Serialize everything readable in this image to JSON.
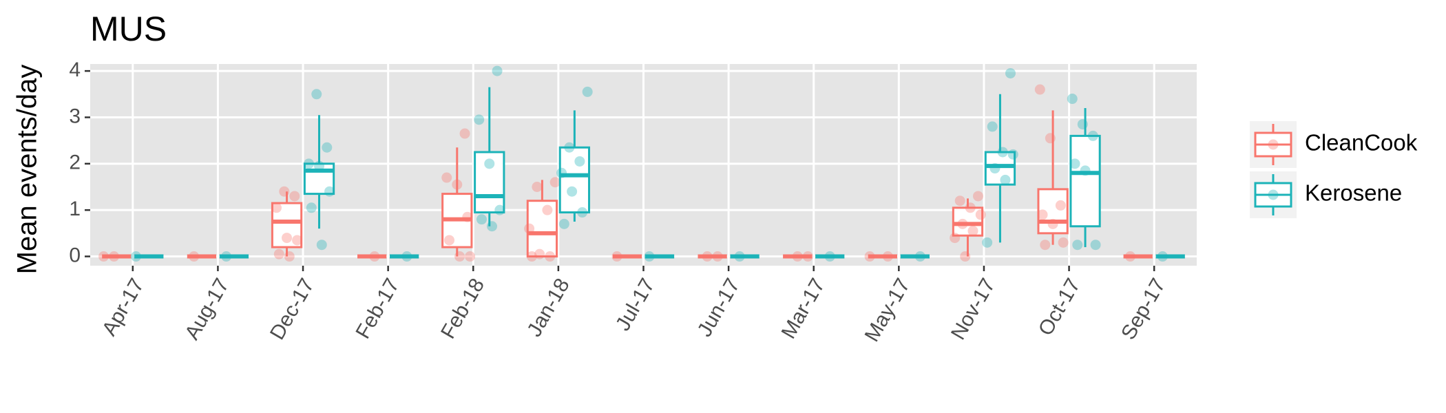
{
  "chart_data": {
    "type": "boxplot",
    "title": "MUS",
    "y_label": "Mean events/day",
    "categories": [
      "Apr-17",
      "Aug-17",
      "Dec-17",
      "Feb-17",
      "Feb-18",
      "Jan-18",
      "Jul-17",
      "Jun-17",
      "Mar-17",
      "May-17",
      "Nov-17",
      "Oct-17",
      "Sep-17"
    ],
    "ylim": [
      -0.2,
      4.15
    ],
    "yticks": [
      0,
      1,
      2,
      3,
      4
    ],
    "grid": true,
    "legend": "right",
    "series": [
      {
        "name": "CleanCook",
        "color": "#F8766D",
        "boxes": [
          {
            "min": 0,
            "q1": 0,
            "median": 0,
            "q3": 0,
            "max": 0
          },
          {
            "min": 0,
            "q1": 0,
            "median": 0,
            "q3": 0,
            "max": 0
          },
          {
            "min": 0,
            "q1": 0.2,
            "median": 0.75,
            "q3": 1.15,
            "max": 1.4
          },
          {
            "min": 0,
            "q1": 0,
            "median": 0,
            "q3": 0,
            "max": 0
          },
          {
            "min": 0,
            "q1": 0.2,
            "median": 0.8,
            "q3": 1.35,
            "max": 2.35
          },
          {
            "min": 0,
            "q1": 0,
            "median": 0.5,
            "q3": 1.2,
            "max": 1.65
          },
          {
            "min": 0,
            "q1": 0,
            "median": 0,
            "q3": 0,
            "max": 0
          },
          {
            "min": 0,
            "q1": 0,
            "median": 0,
            "q3": 0,
            "max": 0
          },
          {
            "min": 0,
            "q1": 0,
            "median": 0,
            "q3": 0,
            "max": 0
          },
          {
            "min": 0,
            "q1": 0,
            "median": 0,
            "q3": 0,
            "max": 0
          },
          {
            "min": 0,
            "q1": 0.45,
            "median": 0.7,
            "q3": 1.05,
            "max": 1.25
          },
          {
            "min": 0.25,
            "q1": 0.5,
            "median": 0.75,
            "q3": 1.45,
            "max": 3.15
          },
          {
            "min": 0,
            "q1": 0,
            "median": 0,
            "q3": 0,
            "max": 0
          }
        ],
        "points": [
          [
            0,
            0
          ],
          [
            0
          ],
          [
            1.4,
            1.3,
            1.05,
            0.4,
            0.35,
            0.05,
            0
          ],
          [
            0
          ],
          [
            2.65,
            1.7,
            1.55,
            0.85,
            0.35,
            0,
            0
          ],
          [
            1.6,
            1.5,
            1.0,
            0.6,
            0.05,
            0,
            0
          ],
          [
            0
          ],
          [
            0,
            0
          ],
          [
            0,
            0
          ],
          [
            0,
            0
          ],
          [
            1.3,
            1.2,
            1.05,
            0.9,
            0.7,
            0.55,
            0.4,
            0
          ],
          [
            3.6,
            2.55,
            1.1,
            0.9,
            0.7,
            0.3,
            0.25
          ],
          [
            0
          ]
        ]
      },
      {
        "name": "Kerosene",
        "color": "#1CB3B8",
        "boxes": [
          {
            "min": 0,
            "q1": 0,
            "median": 0,
            "q3": 0,
            "max": 0
          },
          {
            "min": 0,
            "q1": 0,
            "median": 0,
            "q3": 0,
            "max": 0
          },
          {
            "min": 0.6,
            "q1": 1.35,
            "median": 1.85,
            "q3": 2.0,
            "max": 3.05
          },
          {
            "min": 0,
            "q1": 0,
            "median": 0,
            "q3": 0,
            "max": 0
          },
          {
            "min": 0.65,
            "q1": 0.95,
            "median": 1.3,
            "q3": 2.25,
            "max": 3.65
          },
          {
            "min": 0.75,
            "q1": 0.95,
            "median": 1.75,
            "q3": 2.35,
            "max": 3.15
          },
          {
            "min": 0,
            "q1": 0,
            "median": 0,
            "q3": 0,
            "max": 0
          },
          {
            "min": 0,
            "q1": 0,
            "median": 0,
            "q3": 0,
            "max": 0
          },
          {
            "min": 0,
            "q1": 0,
            "median": 0,
            "q3": 0,
            "max": 0
          },
          {
            "min": 0,
            "q1": 0,
            "median": 0,
            "q3": 0,
            "max": 0
          },
          {
            "min": 0.3,
            "q1": 1.55,
            "median": 1.95,
            "q3": 2.25,
            "max": 3.5
          },
          {
            "min": 0.2,
            "q1": 0.65,
            "median": 1.8,
            "q3": 2.6,
            "max": 3.2
          },
          {
            "min": 0,
            "q1": 0,
            "median": 0,
            "q3": 0,
            "max": 0
          }
        ],
        "points": [
          [
            0
          ],
          [
            0
          ],
          [
            3.5,
            2.35,
            2.0,
            1.95,
            1.4,
            1.05,
            0.25
          ],
          [
            0
          ],
          [
            4.0,
            2.95,
            2.0,
            1.0,
            0.8,
            0.65
          ],
          [
            3.55,
            2.35,
            2.05,
            1.8,
            1.4,
            0.95,
            0.7
          ],
          [
            0
          ],
          [
            0
          ],
          [
            0
          ],
          [
            0
          ],
          [
            3.95,
            2.8,
            2.25,
            2.2,
            1.9,
            1.65,
            0.3
          ],
          [
            3.4,
            2.85,
            2.6,
            2.0,
            1.85,
            0.25,
            0.25
          ],
          [
            0
          ]
        ]
      }
    ]
  }
}
